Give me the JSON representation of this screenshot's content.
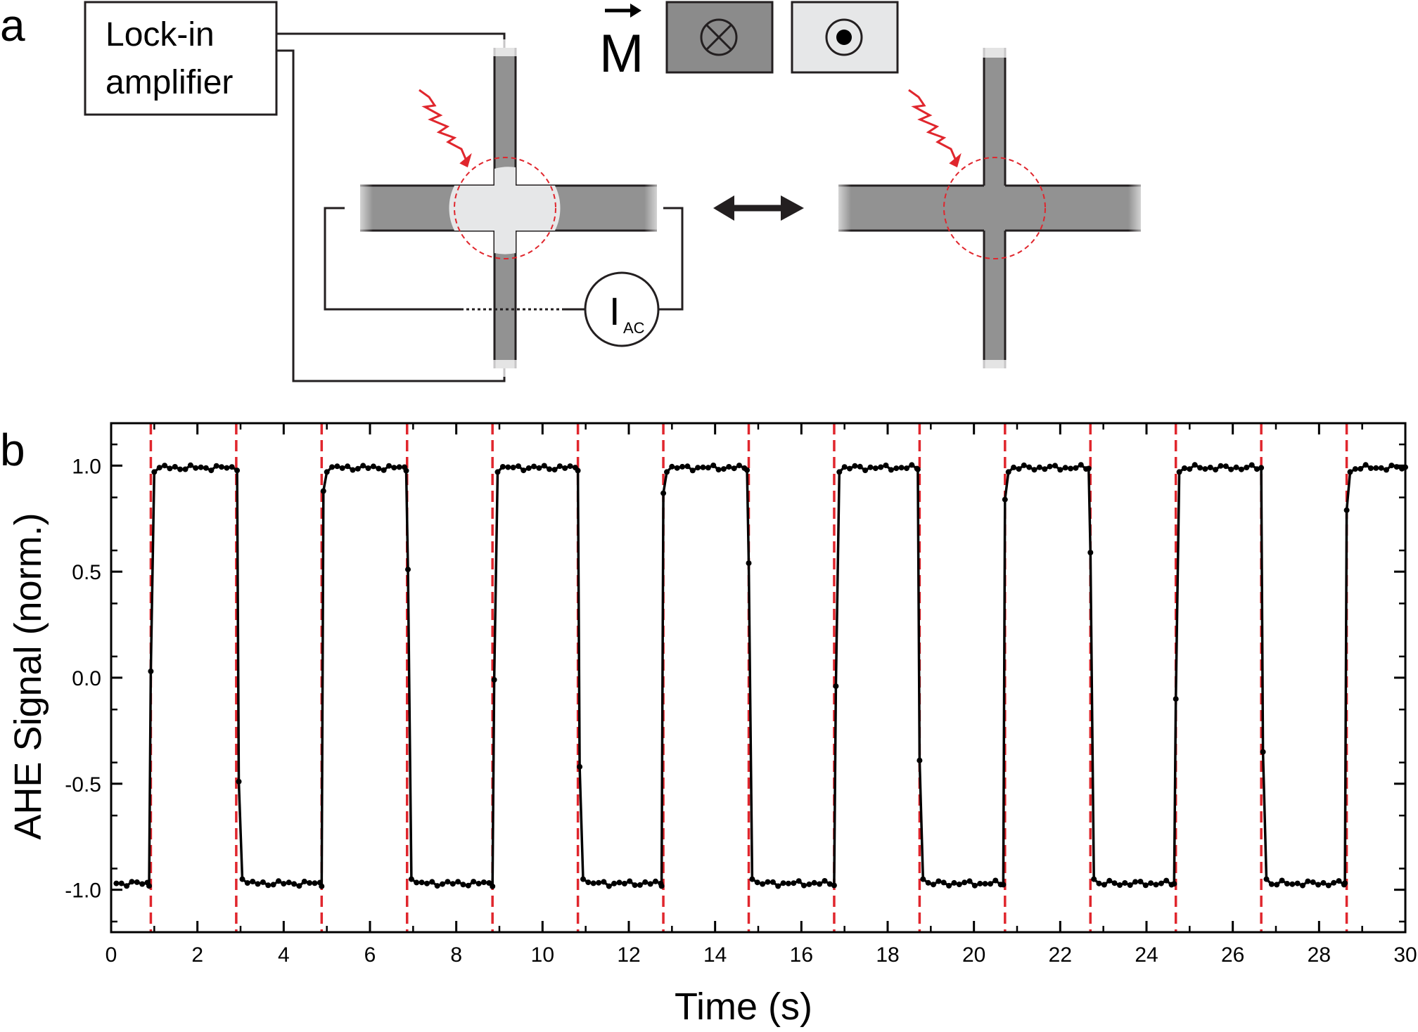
{
  "panel_a": {
    "letter": "a",
    "amplifier_line1": "Lock-in",
    "amplifier_line2": "amplifier",
    "magnetization_symbol": "M",
    "current_source_symbol": "I",
    "current_source_subscript": "AC",
    "icons": [
      "magnetization-into-page-icon",
      "magnetization-out-of-page-icon",
      "double-arrow-icon",
      "laser-pulse-icon"
    ],
    "colors": {
      "bar": "#929292",
      "bar_illuminated": "#e6e7e8",
      "box_into": "#8b8b8b",
      "box_out": "#e6e7e8",
      "laser": "#e0262d"
    }
  },
  "panel_b": {
    "letter": "b"
  },
  "chart_data": {
    "type": "line",
    "title": "",
    "xlabel": "Time (s)",
    "ylabel": "AHE Signal (norm.)",
    "xlim": [
      0,
      30
    ],
    "ylim": [
      -1.2,
      1.2
    ],
    "xticks": [
      0,
      2,
      4,
      6,
      8,
      10,
      12,
      14,
      16,
      18,
      20,
      22,
      24,
      26,
      28,
      30
    ],
    "xtick_labels": [
      "0",
      "2",
      "4",
      "6",
      "8",
      "10",
      "12",
      "14",
      "16",
      "18",
      "20",
      "22",
      "24",
      "26",
      "28",
      "30"
    ],
    "yticks": [
      -1.0,
      -0.5,
      0.0,
      0.5,
      1.0
    ],
    "ytick_labels": [
      "-1.0",
      "-0.5",
      "0.0",
      "0.5",
      "1.0"
    ],
    "grid": false,
    "legend": "none",
    "switch_times": [
      0.92,
      2.9,
      4.88,
      6.86,
      8.84,
      10.82,
      12.8,
      14.78,
      16.76,
      18.74,
      20.72,
      22.7,
      24.68,
      26.66,
      28.64
    ],
    "high_level": 0.99,
    "low_level": -0.97,
    "series": [
      {
        "marker": "circle",
        "color": "#000000",
        "transition_points": [
          [
            0.92,
            0.03
          ],
          [
            2.96,
            -0.49
          ],
          [
            4.92,
            0.88
          ],
          [
            6.88,
            0.51
          ],
          [
            8.88,
            -0.01
          ],
          [
            10.86,
            -0.42
          ],
          [
            12.8,
            0.87
          ],
          [
            14.78,
            0.54
          ],
          [
            16.8,
            -0.04
          ],
          [
            18.74,
            -0.39
          ],
          [
            20.72,
            0.84
          ],
          [
            22.7,
            0.59
          ],
          [
            24.68,
            -0.1
          ],
          [
            26.7,
            -0.35
          ],
          [
            28.64,
            0.79
          ]
        ],
        "sample_interval": 0.12
      }
    ],
    "switch_line_color": "#e0262d"
  }
}
